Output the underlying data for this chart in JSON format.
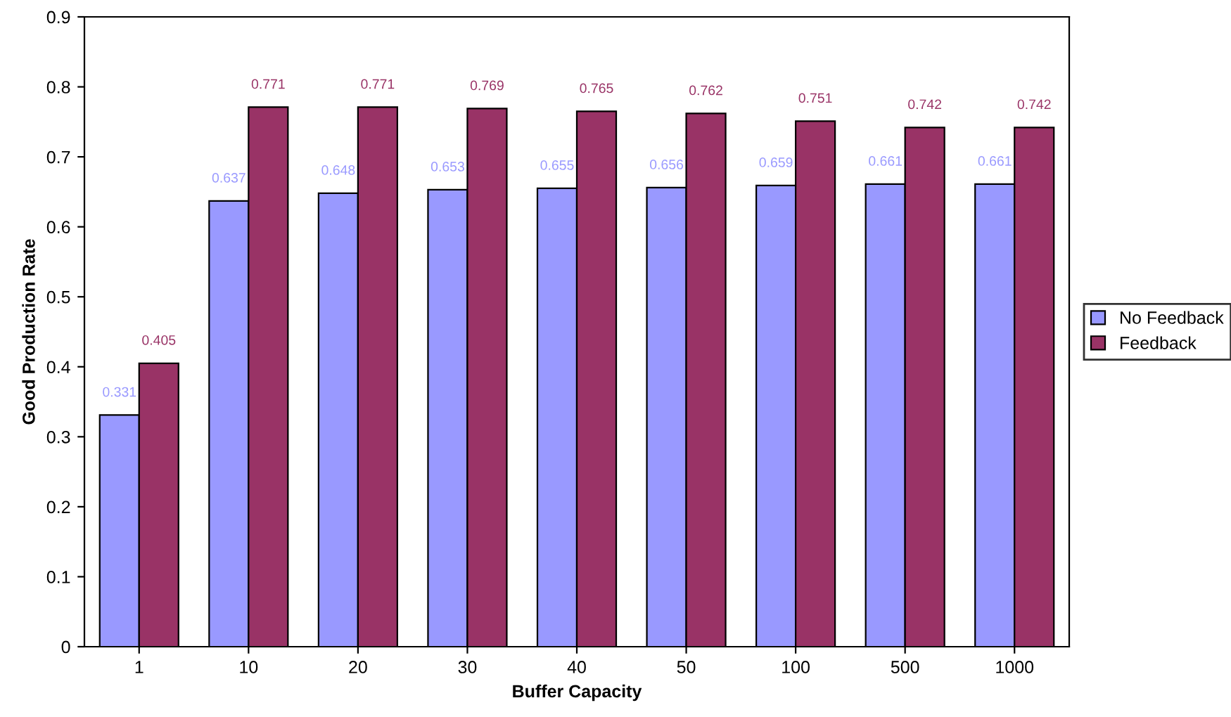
{
  "chart_data": {
    "type": "bar",
    "xlabel": "Buffer Capacity",
    "ylabel": "Good Production Rate",
    "categories": [
      "1",
      "10",
      "20",
      "30",
      "40",
      "50",
      "100",
      "500",
      "1000"
    ],
    "series": [
      {
        "name": "No Feedback",
        "color": "#9999ff",
        "values": [
          0.331,
          0.637,
          0.648,
          0.653,
          0.655,
          0.656,
          0.659,
          0.661,
          0.661
        ]
      },
      {
        "name": "Feedback",
        "color": "#993366",
        "values": [
          0.405,
          0.771,
          0.771,
          0.769,
          0.765,
          0.762,
          0.751,
          0.742,
          0.742
        ]
      }
    ],
    "ylim": [
      0,
      0.9
    ],
    "yticks": [
      0,
      0.1,
      0.2,
      0.3,
      0.4,
      0.5,
      0.6,
      0.7,
      0.8,
      0.9
    ],
    "data_labels": true,
    "legend": "right",
    "grid": false
  }
}
